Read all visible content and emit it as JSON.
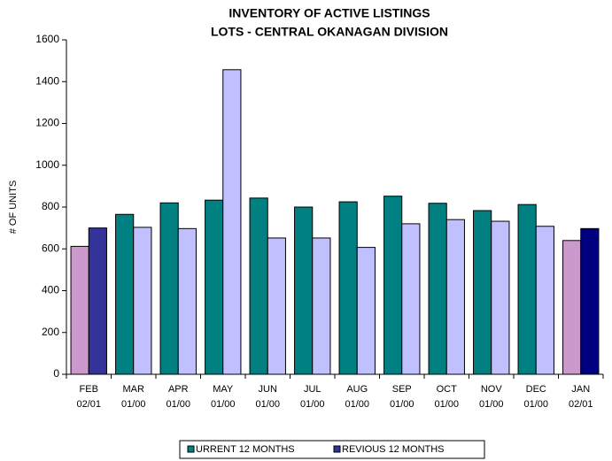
{
  "chart_data": {
    "type": "bar",
    "title": [
      "INVENTORY OF ACTIVE LISTINGS",
      "LOTS - CENTRAL OKANAGAN DIVISION"
    ],
    "y_label": "# OF UNITS",
    "categories": [
      [
        "FEB",
        "02/01"
      ],
      [
        "MAR",
        "01/00"
      ],
      [
        "APR",
        "01/00"
      ],
      [
        "MAY",
        "01/00"
      ],
      [
        "JUN",
        "01/00"
      ],
      [
        "JUL",
        "01/00"
      ],
      [
        "AUG",
        "01/00"
      ],
      [
        "SEP",
        "01/00"
      ],
      [
        "OCT",
        "01/00"
      ],
      [
        "NOV",
        "01/00"
      ],
      [
        "DEC",
        "01/00"
      ],
      [
        "JAN",
        "02/01"
      ]
    ],
    "series": [
      {
        "name": "URRENT 12 MONTHS",
        "color": "#008080",
        "colors": [
          "#cc99cc",
          "#008080",
          "#008080",
          "#008080",
          "#008080",
          "#008080",
          "#008080",
          "#008080",
          "#008080",
          "#008080",
          "#008080",
          "#cc99cc"
        ],
        "values": [
          612,
          765,
          820,
          833,
          843,
          800,
          825,
          852,
          818,
          783,
          812,
          640
        ]
      },
      {
        "name": "REVIOUS 12 MONTHS",
        "color": "#333399",
        "colors": [
          "#333399",
          "#c0c0ff",
          "#c0c0ff",
          "#c0c0ff",
          "#c0c0ff",
          "#c0c0ff",
          "#c0c0ff",
          "#c0c0ff",
          "#c0c0ff",
          "#c0c0ff",
          "#c0c0ff",
          "#000080"
        ],
        "values": [
          700,
          703,
          697,
          1457,
          652,
          652,
          607,
          720,
          740,
          732,
          708,
          697
        ]
      }
    ],
    "ylim": [
      0,
      1600
    ],
    "yticks": [
      0,
      200,
      400,
      600,
      800,
      1000,
      1200,
      1400,
      1600
    ],
    "legend": "bottom"
  }
}
